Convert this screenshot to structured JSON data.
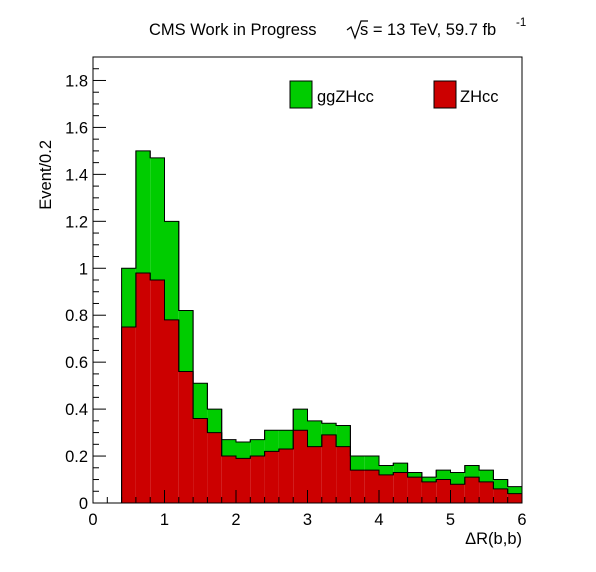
{
  "chart_data": {
    "type": "bar",
    "stacked": true,
    "title": "CMS Work in Progress",
    "energy_label": "s = 13 TeV, 59.7 fb",
    "energy_superscript": "-1",
    "ylabel": "Event/0.2",
    "xlabel": "ΔR(b,b)",
    "xlim": [
      0,
      6
    ],
    "ylim": [
      0,
      1.9
    ],
    "x_ticks": [
      {
        "value": 0,
        "label": "0"
      },
      {
        "value": 1,
        "label": "1"
      },
      {
        "value": 2,
        "label": "2"
      },
      {
        "value": 3,
        "label": "3"
      },
      {
        "value": 4,
        "label": "4"
      },
      {
        "value": 5,
        "label": "5"
      },
      {
        "value": 6,
        "label": "6"
      }
    ],
    "y_ticks": [
      {
        "value": 0,
        "label": "0"
      },
      {
        "value": 0.2,
        "label": "0.2"
      },
      {
        "value": 0.4,
        "label": "0.4"
      },
      {
        "value": 0.6,
        "label": "0.6"
      },
      {
        "value": 0.8,
        "label": "0.8"
      },
      {
        "value": 1.0,
        "label": "1"
      },
      {
        "value": 1.2,
        "label": "1.2"
      },
      {
        "value": 1.4,
        "label": "1.4"
      },
      {
        "value": 1.6,
        "label": "1.6"
      },
      {
        "value": 1.8,
        "label": "1.8"
      }
    ],
    "bin_edges": [
      0.4,
      0.6,
      0.8,
      1.0,
      1.2,
      1.4,
      1.6,
      1.8,
      2.0,
      2.2,
      2.4,
      2.6,
      2.8,
      3.0,
      3.2,
      3.4,
      3.6,
      3.8,
      4.0,
      4.2,
      4.4,
      4.6,
      4.8,
      5.0,
      5.2,
      5.4,
      5.6,
      5.8,
      6.0
    ],
    "legend_position": "top",
    "series": [
      {
        "name": "ZHcc",
        "color": "#cc0000",
        "values": [
          0.75,
          0.98,
          0.95,
          0.78,
          0.56,
          0.36,
          0.3,
          0.2,
          0.19,
          0.2,
          0.22,
          0.23,
          0.31,
          0.24,
          0.29,
          0.24,
          0.14,
          0.14,
          0.12,
          0.13,
          0.11,
          0.09,
          0.1,
          0.08,
          0.11,
          0.09,
          0.06,
          0.04
        ]
      },
      {
        "name": "ggZHcc",
        "color": "#00cc00",
        "values": [
          0.25,
          0.52,
          0.52,
          0.42,
          0.26,
          0.15,
          0.1,
          0.07,
          0.07,
          0.07,
          0.09,
          0.08,
          0.09,
          0.11,
          0.05,
          0.09,
          0.06,
          0.06,
          0.04,
          0.04,
          0.02,
          0.02,
          0.04,
          0.05,
          0.05,
          0.05,
          0.04,
          0.03
        ]
      }
    ]
  }
}
